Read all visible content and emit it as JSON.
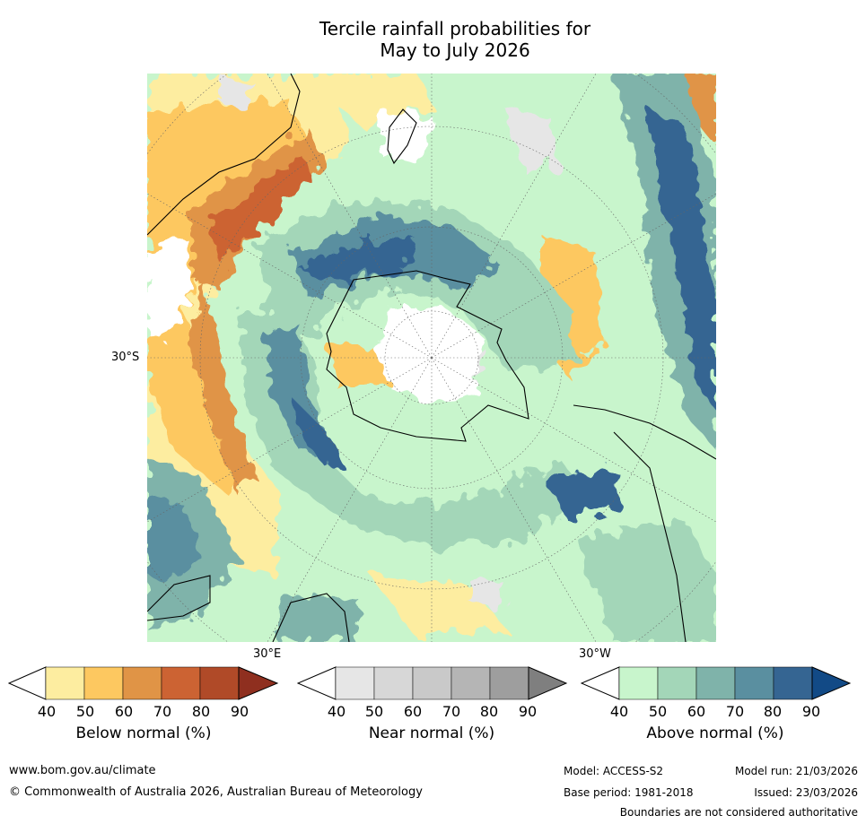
{
  "title_line1": "Tercile rainfall probabilities for",
  "title_line2": "May to July 2026",
  "map": {
    "projection": "south polar stereographic",
    "lat_label": "30°S",
    "lon_label_left": "30°E",
    "lon_label_right": "30°W",
    "colors": {
      "below": [
        "#fdeda0",
        "#fdc860",
        "#e09446",
        "#cc6333",
        "#b04a28",
        "#8f2f1f"
      ],
      "near": [
        "#e6e6e6",
        "#d7d7d7",
        "#c9c9c9",
        "#b5b5b5",
        "#9e9e9e",
        "#7f7f7f"
      ],
      "above": [
        "#c8f5cc",
        "#a3d6b8",
        "#7fb3aa",
        "#5a8fa0",
        "#356592",
        "#124a86"
      ]
    }
  },
  "colorbars": {
    "below": {
      "label": "Below normal (%)",
      "ticks": [
        "40",
        "50",
        "60",
        "70",
        "80",
        "90"
      ]
    },
    "near": {
      "label": "Near normal (%)",
      "ticks": [
        "40",
        "50",
        "60",
        "70",
        "80",
        "90"
      ]
    },
    "above": {
      "label": "Above normal (%)",
      "ticks": [
        "40",
        "50",
        "60",
        "70",
        "80",
        "90"
      ]
    }
  },
  "footer": {
    "website": "www.bom.gov.au/climate",
    "copyright": "© Commonwealth of Australia 2026, Australian Bureau of Meteorology",
    "model": "Model: ACCESS-S2",
    "base_period": "Base period: 1981-2018",
    "model_run": "Model run: 21/03/2026",
    "issued": "Issued: 23/03/2026",
    "disclaimer": "Boundaries are not considered authoritative"
  }
}
